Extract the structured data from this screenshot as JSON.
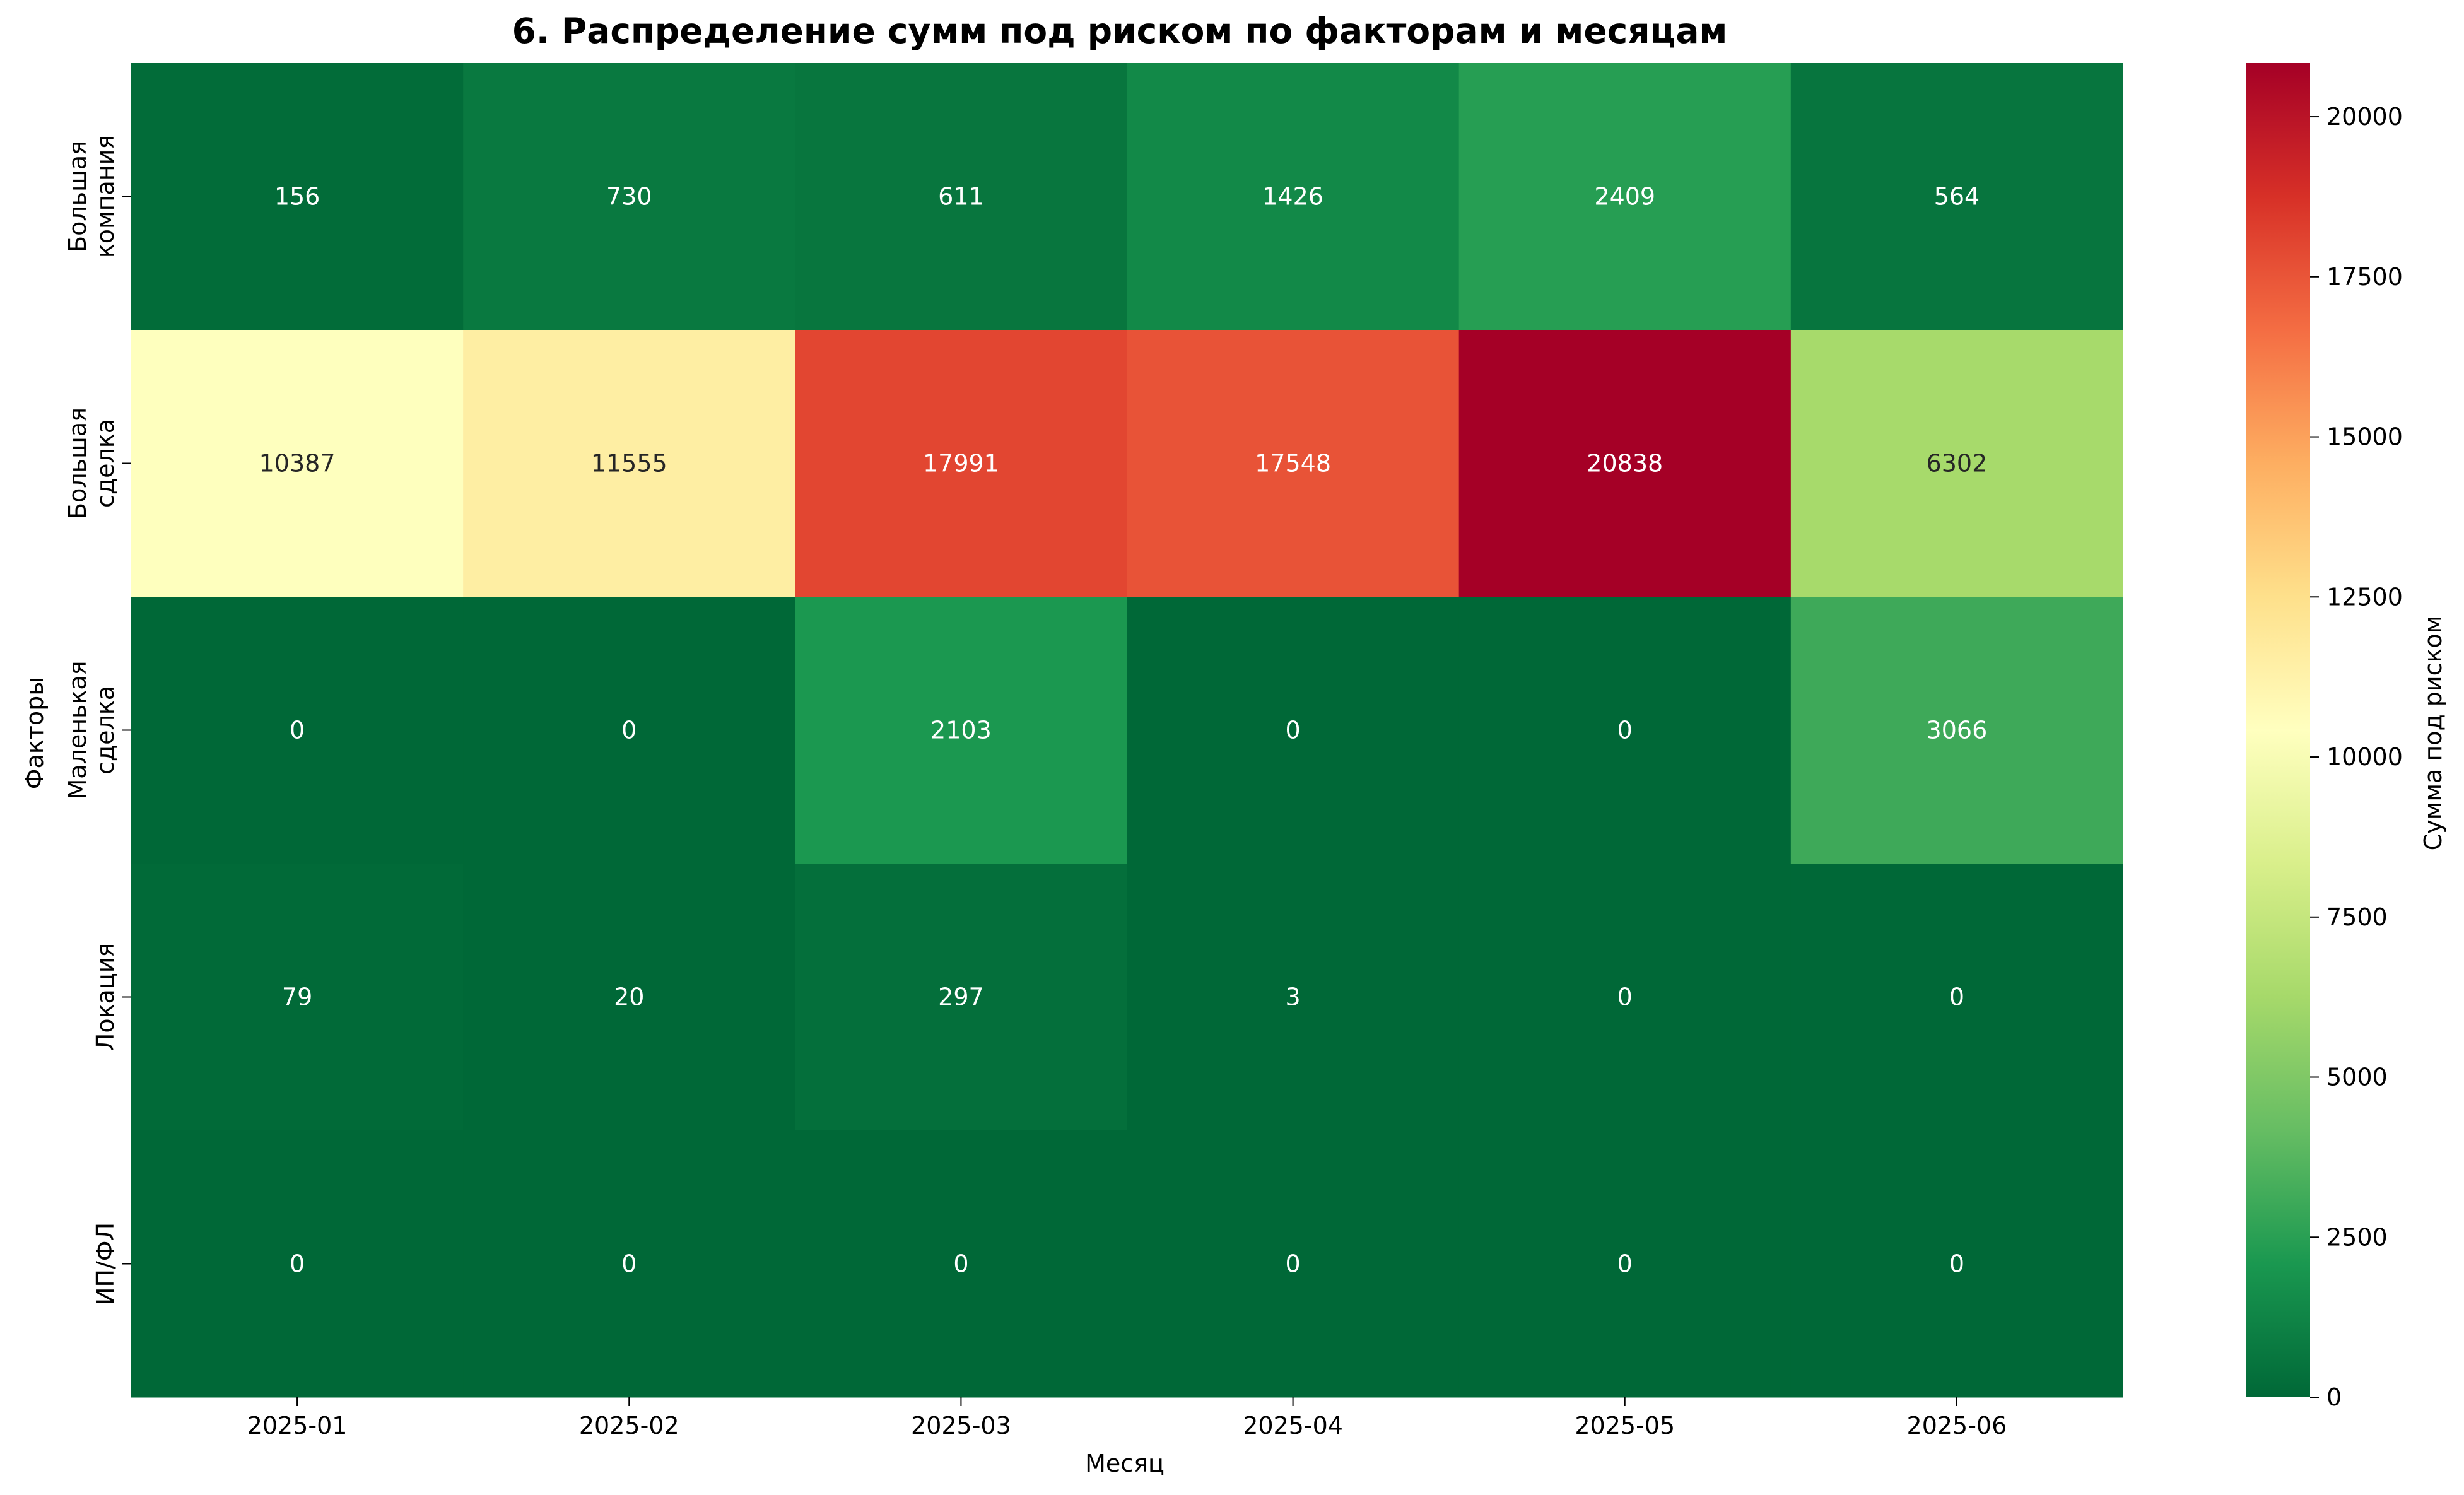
{
  "chart_data": {
    "type": "heatmap",
    "title": "6. Распределение сумм под риском по факторам и месяцам",
    "xlabel": "Месяц",
    "ylabel": "Факторы",
    "x_categories": [
      "2025-01",
      "2025-02",
      "2025-03",
      "2025-04",
      "2025-05",
      "2025-06"
    ],
    "y_categories": [
      [
        "Большая",
        "компания"
      ],
      [
        "Большая",
        "сделка"
      ],
      [
        "Маленькая",
        "сделка"
      ],
      [
        "Локация"
      ],
      [
        "ИП/ФЛ"
      ]
    ],
    "values": [
      [
        156,
        730,
        611,
        1426,
        2409,
        564
      ],
      [
        10387,
        11555,
        17991,
        17548,
        20838,
        6302
      ],
      [
        0,
        0,
        2103,
        0,
        0,
        3066
      ],
      [
        79,
        20,
        297,
        3,
        0,
        0
      ],
      [
        0,
        0,
        0,
        0,
        0,
        0
      ]
    ],
    "colorbar": {
      "label": "Сумма под риском",
      "colormap": "RdYlGn_r",
      "range": [
        0,
        20838
      ],
      "ticks": [
        0,
        2500,
        5000,
        7500,
        10000,
        12500,
        15000,
        17500,
        20000
      ]
    }
  }
}
